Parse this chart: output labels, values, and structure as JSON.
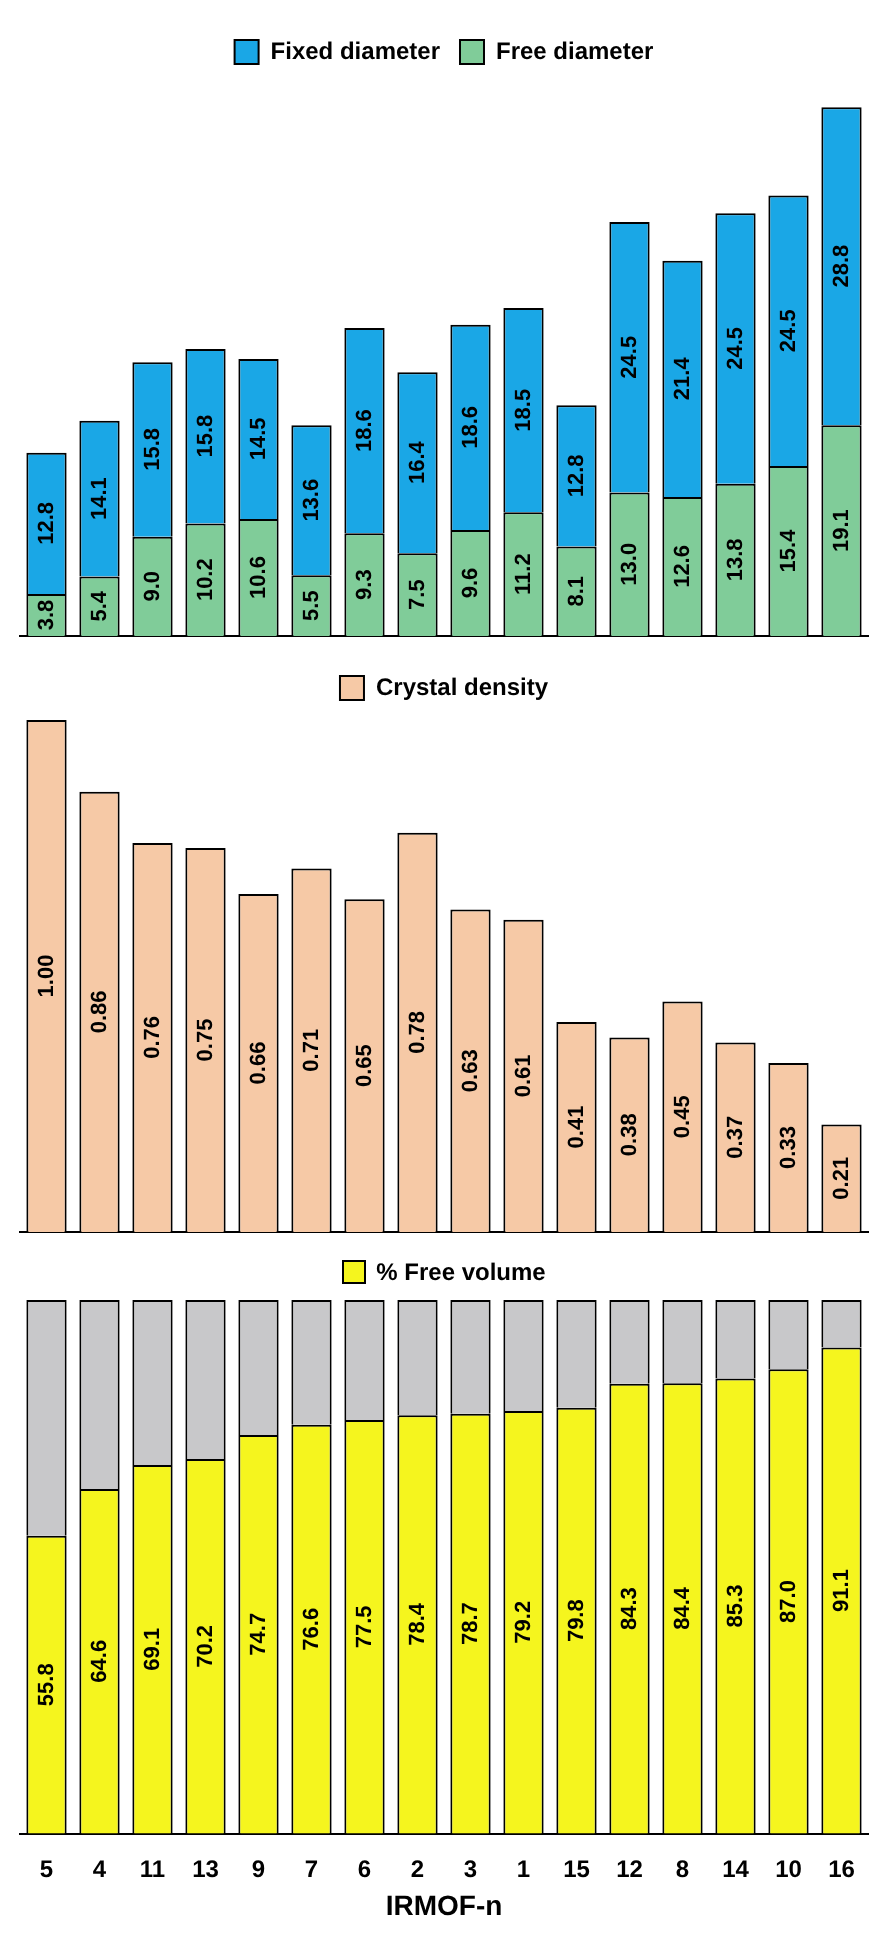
{
  "chart_data": [
    {
      "type": "bar",
      "stacked": true,
      "legend": "top",
      "tick_labels": false,
      "categories": [
        "5",
        "4",
        "11",
        "13",
        "9",
        "7",
        "6",
        "2",
        "3",
        "1",
        "15",
        "12",
        "8",
        "14",
        "10",
        "16"
      ],
      "series": [
        {
          "name": "Free diameter",
          "color": "#80cc99",
          "values": [
            3.8,
            5.4,
            9.0,
            10.2,
            10.6,
            5.5,
            9.3,
            7.5,
            9.6,
            11.2,
            8.1,
            13.0,
            12.6,
            13.8,
            15.4,
            19.1
          ],
          "value_labels": [
            "3.8",
            "5.4",
            "9.0",
            "10.2",
            "10.6",
            "5.5",
            "9.3",
            "7.5",
            "9.6",
            "11.2",
            "8.1",
            "13.0",
            "12.6",
            "13.8",
            "15.4",
            "19.1"
          ]
        },
        {
          "name": "Fixed diameter",
          "color": "#1aa7e6",
          "values": [
            12.8,
            14.1,
            15.8,
            15.8,
            14.5,
            13.6,
            18.6,
            16.4,
            18.6,
            18.5,
            12.8,
            24.5,
            21.4,
            24.5,
            24.5,
            28.8
          ],
          "value_labels": [
            "12.8",
            "14.1",
            "15.8",
            "15.8",
            "14.5",
            "13.6",
            "18.6",
            "16.4",
            "18.6",
            "18.5",
            "12.8",
            "24.5",
            "21.4",
            "24.5",
            "24.5",
            "28.8"
          ]
        }
      ]
    },
    {
      "type": "bar",
      "legend": "top",
      "tick_labels": false,
      "categories": [
        "5",
        "4",
        "11",
        "13",
        "9",
        "7",
        "6",
        "2",
        "3",
        "1",
        "15",
        "12",
        "8",
        "14",
        "10",
        "16"
      ],
      "series": [
        {
          "name": "Crystal density",
          "color": "#f6c9a6",
          "values": [
            1.0,
            0.86,
            0.76,
            0.75,
            0.66,
            0.71,
            0.65,
            0.78,
            0.63,
            0.61,
            0.41,
            0.38,
            0.45,
            0.37,
            0.33,
            0.21
          ],
          "value_labels": [
            "1.00",
            "0.86",
            "0.76",
            "0.75",
            "0.66",
            "0.71",
            "0.65",
            "0.78",
            "0.63",
            "0.61",
            "0.41",
            "0.38",
            "0.45",
            "0.37",
            "0.33",
            "0.21"
          ]
        }
      ]
    },
    {
      "type": "bar",
      "stacked": true,
      "legend": "top",
      "xlabel": "IRMOF-n",
      "categories": [
        "5",
        "4",
        "11",
        "13",
        "9",
        "7",
        "6",
        "2",
        "3",
        "1",
        "15",
        "12",
        "8",
        "14",
        "10",
        "16"
      ],
      "series": [
        {
          "name": "% Free volume",
          "color": "#f5f51e",
          "values": [
            55.8,
            64.6,
            69.1,
            70.2,
            74.7,
            76.6,
            77.5,
            78.4,
            78.7,
            79.2,
            79.8,
            84.3,
            84.4,
            85.3,
            87.0,
            91.1
          ],
          "value_labels": [
            "55.8",
            "64.6",
            "69.1",
            "70.2",
            "74.7",
            "76.6",
            "77.5",
            "78.4",
            "78.7",
            "79.2",
            "79.8",
            "84.3",
            "84.4",
            "85.3",
            "87.0",
            "91.1"
          ]
        },
        {
          "color": "#c8c8ca",
          "values": [
            44.2,
            35.4,
            30.9,
            29.8,
            25.3,
            23.4,
            22.5,
            21.6,
            21.3,
            20.8,
            20.2,
            15.7,
            15.6,
            14.7,
            13.0,
            8.9
          ]
        }
      ]
    }
  ]
}
